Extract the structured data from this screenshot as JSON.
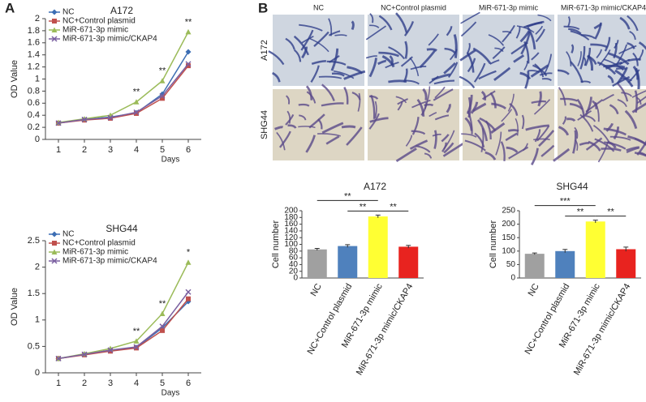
{
  "panel_labels": [
    "A",
    "B"
  ],
  "micrographs": {
    "columns": [
      "NC",
      "NC+Control plasmid",
      "MiR-671-3p mimic",
      "MiR-671-3p mimic/CKAP4"
    ],
    "rows": [
      "A172",
      "SHG44"
    ]
  },
  "chart_data": [
    {
      "type": "line",
      "title": "A172",
      "x_label": "Days",
      "y_label": "OD Value",
      "x": [
        1,
        2,
        3,
        4,
        5,
        6
      ],
      "xlim": [
        0.5,
        6.5
      ],
      "xticks": [
        1,
        2,
        3,
        4,
        5,
        6
      ],
      "ylim": [
        0,
        2
      ],
      "yticks": [
        0,
        0.2,
        0.4,
        0.6,
        0.8,
        1,
        1.2,
        1.4,
        1.6,
        1.8,
        2
      ],
      "series": [
        {
          "name": "NC",
          "color": "#3c6eb4",
          "marker": "diamond",
          "values": [
            0.27,
            0.33,
            0.37,
            0.44,
            0.75,
            1.45
          ]
        },
        {
          "name": "NC+Control plasmid",
          "color": "#c0504d",
          "marker": "square",
          "values": [
            0.27,
            0.32,
            0.35,
            0.43,
            0.68,
            1.22
          ]
        },
        {
          "name": "MiR-671-3p mimic",
          "color": "#9bbb59",
          "marker": "triangle",
          "values": [
            0.28,
            0.34,
            0.4,
            0.62,
            0.97,
            1.78
          ]
        },
        {
          "name": "MiR-671-3p mimic/CKAP4",
          "color": "#7a5fa0",
          "marker": "x",
          "values": [
            0.27,
            0.33,
            0.36,
            0.45,
            0.72,
            1.25
          ]
        }
      ],
      "annotations": [
        {
          "x": 4,
          "text": "**"
        },
        {
          "x": 5,
          "text": "**"
        },
        {
          "x": 6,
          "text": "**"
        }
      ]
    },
    {
      "type": "line",
      "title": "SHG44",
      "x_label": "Days",
      "y_label": "OD Value",
      "x": [
        1,
        2,
        3,
        4,
        5,
        6
      ],
      "xlim": [
        0.5,
        6.5
      ],
      "xticks": [
        1,
        2,
        3,
        4,
        5,
        6
      ],
      "ylim": [
        0,
        2.5
      ],
      "yticks": [
        0,
        0.5,
        1,
        1.5,
        2,
        2.5
      ],
      "series": [
        {
          "name": "NC",
          "color": "#3c6eb4",
          "marker": "diamond",
          "values": [
            0.27,
            0.35,
            0.42,
            0.48,
            0.85,
            1.35
          ]
        },
        {
          "name": "NC+Control plasmid",
          "color": "#c0504d",
          "marker": "square",
          "values": [
            0.27,
            0.34,
            0.41,
            0.47,
            0.8,
            1.4
          ]
        },
        {
          "name": "MiR-671-3p mimic",
          "color": "#9bbb59",
          "marker": "triangle",
          "values": [
            0.27,
            0.36,
            0.46,
            0.6,
            1.12,
            2.09
          ]
        },
        {
          "name": "MiR-671-3p mimic/CKAP4",
          "color": "#7a5fa0",
          "marker": "x",
          "values": [
            0.27,
            0.35,
            0.43,
            0.49,
            0.88,
            1.53
          ]
        }
      ],
      "annotations": [
        {
          "x": 4,
          "text": "**"
        },
        {
          "x": 5,
          "text": "**"
        },
        {
          "x": 6,
          "text": "*"
        }
      ]
    },
    {
      "type": "bar",
      "title": "A172",
      "y_label": "Cell number",
      "categories": [
        "NC",
        "NC+Control plasmid",
        "MiR-671-3p mimic",
        "MiR-671-3p mimic/CKAP4"
      ],
      "values": [
        85,
        95,
        183,
        93
      ],
      "errors": [
        3,
        4,
        4,
        4
      ],
      "colors": [
        "#a0a0a0",
        "#4f81bd",
        "#ffff33",
        "#e8231f"
      ],
      "ylim": [
        0,
        200
      ],
      "yticks": [
        0,
        20,
        40,
        60,
        80,
        100,
        120,
        140,
        160,
        180,
        200
      ],
      "comparisons": [
        {
          "from": 0,
          "to": 2,
          "text": "**"
        },
        {
          "from": 1,
          "to": 2,
          "text": "**"
        },
        {
          "from": 2,
          "to": 3,
          "text": "**"
        }
      ]
    },
    {
      "type": "bar",
      "title": "SHG44",
      "y_label": "Cell number",
      "categories": [
        "NC",
        "NC+Control plasmid",
        "MiR-671-3p mimic",
        "MiR-671-3p mimic/CKAP4"
      ],
      "values": [
        90,
        100,
        210,
        107
      ],
      "errors": [
        3,
        6,
        5,
        8
      ],
      "colors": [
        "#a0a0a0",
        "#4f81bd",
        "#ffff33",
        "#e8231f"
      ],
      "ylim": [
        0,
        250
      ],
      "yticks": [
        0,
        50,
        100,
        150,
        200,
        250
      ],
      "comparisons": [
        {
          "from": 0,
          "to": 2,
          "text": "***"
        },
        {
          "from": 1,
          "to": 2,
          "text": "**"
        },
        {
          "from": 2,
          "to": 3,
          "text": "**"
        }
      ]
    }
  ]
}
